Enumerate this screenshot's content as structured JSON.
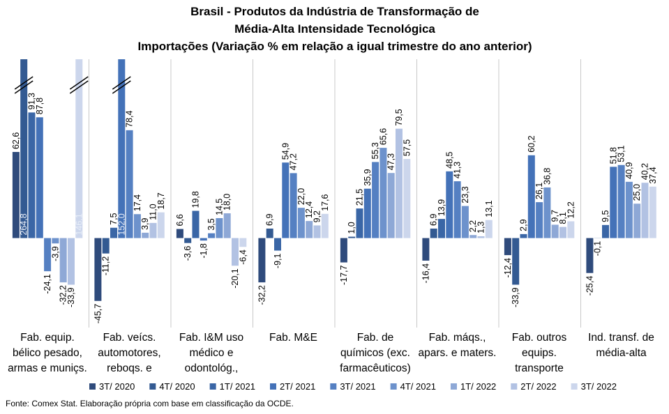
{
  "chart_data": {
    "type": "bar",
    "title": [
      "Brasil - Produtos da Indústria de Transformação de",
      "Média-Alta Intensidade Tecnológica"
    ],
    "subtitle": "Importações (Variação % em relação a igual trimestre do ano anterior)",
    "source": "Fonte: Comex Stat. Elaboração própria com base em classificação da OCDE.",
    "categories": [
      "Fab. equip. bélico pesado, armas e muniçs.",
      "Fab. veícs. automotores, reboqs. e",
      "Fab. I&M uso médico e odontológ.,",
      "Fab. M&E",
      "Fab. de químicos (exc. farmacêuticos)",
      "Fab. máqs., apars. e maters.",
      "Fab. outros equips. transporte",
      "Ind. transf. de média-alta"
    ],
    "ylim": [
      -60,
      130
    ],
    "series": [
      {
        "name": "3T/ 2020",
        "color": "#2f4b7c",
        "values": [
          62.6,
          -45.7,
          6.6,
          -32.2,
          -17.7,
          -16.4,
          -12.4,
          -25.4
        ],
        "value_labels": [
          "62,6",
          "-45,7",
          "6,6",
          "-32,2",
          "-17,7",
          "-16,4",
          "-12,4",
          "-25,4"
        ]
      },
      {
        "name": "4T/ 2020",
        "color": "#335a92",
        "values": [
          264.8,
          -11.2,
          -3.6,
          6.9,
          1.0,
          6.9,
          -33.9,
          -0.1
        ],
        "value_labels": [
          "264,8",
          "-11,2",
          "-3,6",
          "6,9",
          "1,0",
          "6,9",
          "-33,9",
          "-0,1"
        ]
      },
      {
        "name": "1T/ 2021",
        "color": "#3a66a6",
        "values": [
          91.3,
          7.5,
          19.8,
          -9.1,
          21.5,
          13.9,
          2.9,
          9.5
        ],
        "value_labels": [
          "91,3",
          "7,5",
          "19,8",
          "-9,1",
          "21,5",
          "13,9",
          "2,9",
          "9,5"
        ]
      },
      {
        "name": "2T/ 2021",
        "color": "#4472b8",
        "values": [
          87.8,
          152.0,
          -1.8,
          54.9,
          35.9,
          48.5,
          60.2,
          51.8
        ],
        "value_labels": [
          "87,8",
          "152,0",
          "-1,8",
          "54,9",
          "35,9",
          "48,5",
          "60,2",
          "51,8"
        ]
      },
      {
        "name": "3T/ 2021",
        "color": "#5580c2",
        "values": [
          -24.1,
          78.4,
          3.5,
          47.2,
          55.3,
          41.3,
          26.1,
          53.1
        ],
        "value_labels": [
          "-24,1",
          "78,4",
          "3,5",
          "47,2",
          "55,3",
          "41,3",
          "26,1",
          "53,1"
        ]
      },
      {
        "name": "4T/ 2021",
        "color": "#6d92cc",
        "values": [
          -3.9,
          17.4,
          14.5,
          22.0,
          65.6,
          23.3,
          36.8,
          40.9
        ],
        "value_labels": [
          "-3,9",
          "17,4",
          "14,5",
          "22,0",
          "65,6",
          "23,3",
          "36,8",
          "40,9"
        ]
      },
      {
        "name": "1T/ 2022",
        "color": "#8ea8d6",
        "values": [
          -32.2,
          3.9,
          18.0,
          12.4,
          47.3,
          2.2,
          9.7,
          25.0
        ],
        "value_labels": [
          "-32,2",
          "3,9",
          "18,0",
          "12,4",
          "47,3",
          "2,2",
          "9,7",
          "25,0"
        ]
      },
      {
        "name": "2T/ 2022",
        "color": "#b2c2e3",
        "values": [
          -33.9,
          11.0,
          -20.1,
          9.2,
          79.5,
          1.3,
          8.1,
          40.2
        ],
        "value_labels": [
          "-33,9",
          "11,0",
          "-20,1",
          "9,2",
          "79,5",
          "1,3",
          "8,1",
          "40,2"
        ]
      },
      {
        "name": "3T/ 2022",
        "color": "#ccd6ec",
        "values": [
          146.1,
          18.7,
          -6.4,
          17.6,
          57.5,
          13.1,
          12.2,
          37.4
        ],
        "value_labels": [
          "146,1",
          "18,7",
          "-6,4",
          "17,6",
          "57,5",
          "13,1",
          "12,2",
          "37,4"
        ]
      }
    ]
  }
}
